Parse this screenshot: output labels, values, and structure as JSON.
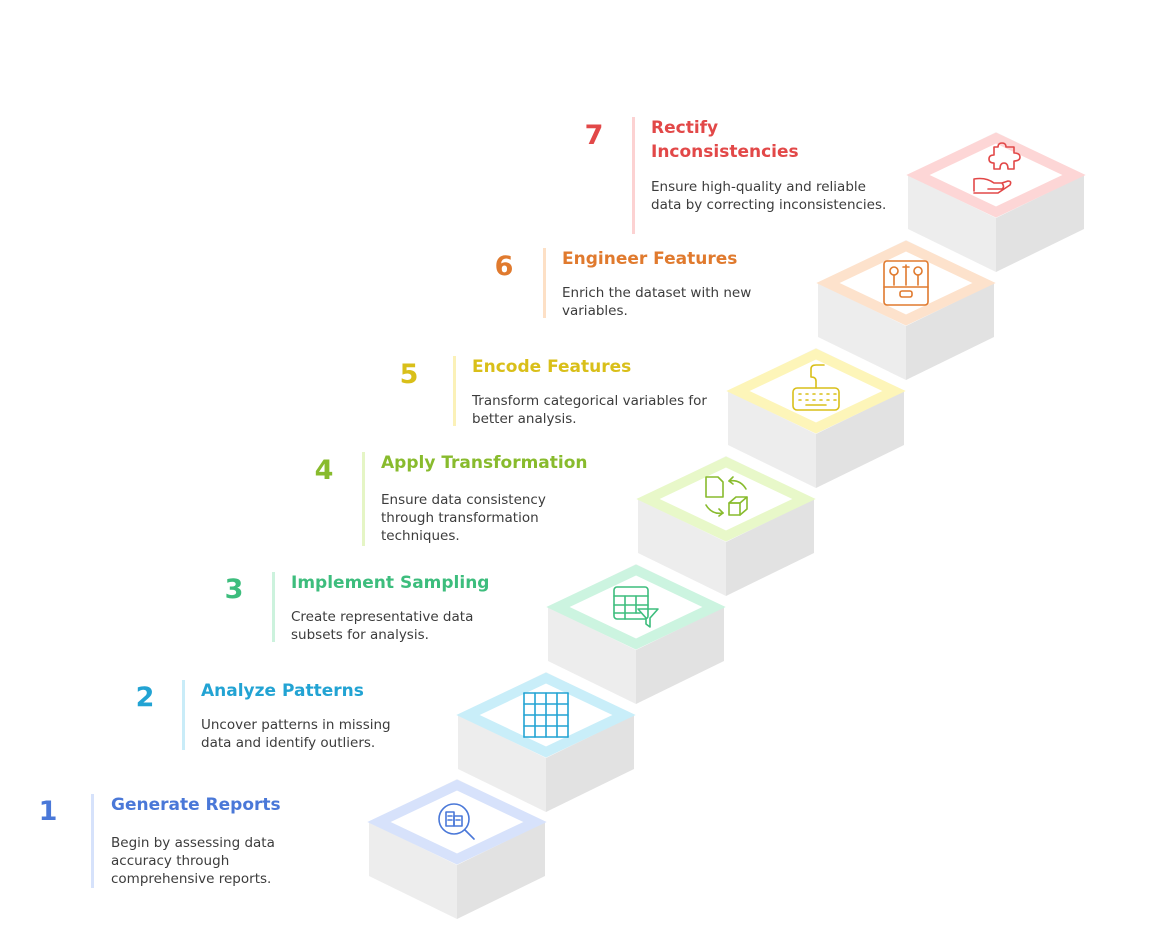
{
  "steps": [
    {
      "number": "1",
      "title": "Generate Reports",
      "description": "Begin by assessing data accuracy through comprehensive reports.",
      "color": "#4a78d8",
      "barColor": "#d6e2fb",
      "tileStroke": "#d7e2fb",
      "icon": "report-search-icon"
    },
    {
      "number": "2",
      "title": "Analyze Patterns",
      "description": "Uncover patterns in missing data and identify outliers.",
      "color": "#22a3d3",
      "barColor": "#c9ecf8",
      "tileStroke": "#c9eef9",
      "icon": "grid-pattern-icon"
    },
    {
      "number": "3",
      "title": "Implement Sampling",
      "description": "Create representative data subsets for analysis.",
      "color": "#3dbd7d",
      "barColor": "#ccf2dd",
      "tileStroke": "#ccf4e0",
      "icon": "table-filter-icon"
    },
    {
      "number": "4",
      "title": "Apply Transformation",
      "description": "Ensure data consistency through transformation techniques.",
      "color": "#88bb2d",
      "barColor": "#e5f5c5",
      "tileStroke": "#e8f8c9",
      "icon": "transform-icon"
    },
    {
      "number": "5",
      "title": "Encode Features",
      "description": "Transform categorical variables for better analysis.",
      "color": "#d9bf19",
      "barColor": "#fbf1b8",
      "tileStroke": "#fdf5b9",
      "icon": "keyboard-icon"
    },
    {
      "number": "6",
      "title": "Engineer Features",
      "description": "Enrich the dataset with new variables.",
      "color": "#e07a2e",
      "barColor": "#fde0c6",
      "tileStroke": "#fde2cc",
      "icon": "toolbox-icon"
    },
    {
      "number": "7",
      "title": "Rectify Inconsistencies",
      "description": "Ensure high-quality and reliable data by correcting inconsistencies.",
      "color": "#e24848",
      "barColor": "#fcd2d2",
      "tileStroke": "#fdd6d6",
      "icon": "puzzle-hand-icon"
    }
  ]
}
